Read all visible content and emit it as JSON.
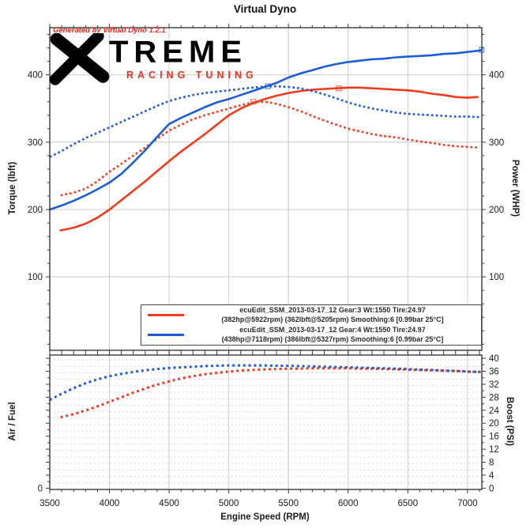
{
  "title": "Virtual Dyno",
  "watermark": "Generated by Virtual Dyno 1.2.1",
  "logo": {
    "x_glyph": "X",
    "word": "TREME",
    "subtitle": "RACING TUNING"
  },
  "colors": {
    "red_series": "#f23b1c",
    "blue_series": "#1b5cd8",
    "grid": "#c9c9c9",
    "axis": "#3a3a3a",
    "tick_label": "#1c1c1c",
    "watermark_red": "#f2261a",
    "logo_black": "#000000",
    "logo_red": "#e8321e"
  },
  "legend": {
    "entries": [
      {
        "color": "#f23b1c",
        "line1": "ecuEdit_SSM_2013-03-17_12 Gear:3 Wt:1550 Tire:24.97",
        "line2": "(382hp@5922rpm) (362lbft@5205rpm) Smoothing:6 [0.99bar 25°C]"
      },
      {
        "color": "#1b5cd8",
        "line1": "ecuEdit_SSM_2013-03-17_12 Gear:4 Wt:1550 Tire:24.97",
        "line2": "(438hp@7118rpm) (386lbft@5327rpm) Smoothing:6 [0.99bar 25°C]"
      }
    ]
  },
  "x_axis": {
    "label": "Engine Speed (RPM)",
    "ticks": [
      3500,
      4000,
      4500,
      5000,
      5500,
      6000,
      6500,
      7000
    ],
    "tick_labels": [
      "3500",
      "4000",
      "4500",
      "5000",
      "5500",
      "6000",
      "6500",
      "7000"
    ],
    "minor_step": 100,
    "xlim": [
      3500,
      7120
    ]
  },
  "chart_data": [
    {
      "type": "line",
      "title": "Virtual Dyno",
      "ylabel_left": "Torque (lbft)",
      "ylabel_right": "Power (WHP)",
      "xlim": [
        3500,
        7120
      ],
      "ylim": [
        -9,
        470
      ],
      "yticks": [
        100,
        200,
        300,
        400
      ],
      "ytick_labels": [
        "100",
        "200",
        "300",
        "400"
      ],
      "y_minor_step": 20,
      "grid": "solid-major",
      "legend_position": "bottom-inside",
      "series": [
        {
          "name": "gear3-power-whp",
          "color": "#f23b1c",
          "style": "solid",
          "points": [
            [
              3590,
              169
            ],
            [
              3700,
              173
            ],
            [
              3800,
              179
            ],
            [
              3900,
              188
            ],
            [
              4000,
              200
            ],
            [
              4100,
              214
            ],
            [
              4200,
              228
            ],
            [
              4300,
              242
            ],
            [
              4400,
              257
            ],
            [
              4500,
              272
            ],
            [
              4600,
              286
            ],
            [
              4700,
              299
            ],
            [
              4800,
              312
            ],
            [
              4900,
              326
            ],
            [
              5000,
              340
            ],
            [
              5100,
              350
            ],
            [
              5200,
              358
            ],
            [
              5300,
              364
            ],
            [
              5400,
              369
            ],
            [
              5500,
              373
            ],
            [
              5600,
              376
            ],
            [
              5700,
              378
            ],
            [
              5800,
              379
            ],
            [
              5900,
              380
            ],
            [
              6000,
              381
            ],
            [
              6100,
              381
            ],
            [
              6200,
              380
            ],
            [
              6300,
              379
            ],
            [
              6400,
              378
            ],
            [
              6500,
              377
            ],
            [
              6600,
              375
            ],
            [
              6700,
              372
            ],
            [
              6800,
              370
            ],
            [
              6900,
              367
            ],
            [
              7000,
              366
            ],
            [
              7085,
              367
            ]
          ]
        },
        {
          "name": "gear3-torque-lbft",
          "color": "#f23b1c",
          "style": "dotted",
          "points": [
            [
              3590,
              221
            ],
            [
              3700,
              225
            ],
            [
              3800,
              231
            ],
            [
              3900,
              242
            ],
            [
              4000,
              256
            ],
            [
              4100,
              268
            ],
            [
              4200,
              280
            ],
            [
              4300,
              292
            ],
            [
              4400,
              305
            ],
            [
              4500,
              317
            ],
            [
              4600,
              326
            ],
            [
              4700,
              334
            ],
            [
              4800,
              340
            ],
            [
              4900,
              345
            ],
            [
              5000,
              350
            ],
            [
              5100,
              355
            ],
            [
              5205,
              359
            ],
            [
              5300,
              360
            ],
            [
              5400,
              357
            ],
            [
              5500,
              352
            ],
            [
              5600,
              346
            ],
            [
              5700,
              339
            ],
            [
              5800,
              332
            ],
            [
              5900,
              326
            ],
            [
              6000,
              320
            ],
            [
              6100,
              316
            ],
            [
              6200,
              312
            ],
            [
              6300,
              309
            ],
            [
              6400,
              307
            ],
            [
              6500,
              304
            ],
            [
              6600,
              301
            ],
            [
              6700,
              299
            ],
            [
              6800,
              296
            ],
            [
              6900,
              294
            ],
            [
              7000,
              293
            ],
            [
              7085,
              292
            ]
          ]
        },
        {
          "name": "gear4-power-whp",
          "color": "#1b5cd8",
          "style": "solid",
          "points": [
            [
              3500,
              200
            ],
            [
              3600,
              206
            ],
            [
              3700,
              213
            ],
            [
              3800,
              221
            ],
            [
              3900,
              230
            ],
            [
              4000,
              240
            ],
            [
              4100,
              253
            ],
            [
              4200,
              270
            ],
            [
              4300,
              288
            ],
            [
              4400,
              308
            ],
            [
              4500,
              327
            ],
            [
              4600,
              336
            ],
            [
              4700,
              344
            ],
            [
              4800,
              352
            ],
            [
              4900,
              359
            ],
            [
              5000,
              364
            ],
            [
              5100,
              370
            ],
            [
              5200,
              376
            ],
            [
              5300,
              382
            ],
            [
              5400,
              388
            ],
            [
              5500,
              396
            ],
            [
              5600,
              402
            ],
            [
              5700,
              407
            ],
            [
              5800,
              412
            ],
            [
              5900,
              416
            ],
            [
              6000,
              419
            ],
            [
              6100,
              421
            ],
            [
              6200,
              423
            ],
            [
              6300,
              424
            ],
            [
              6400,
              426
            ],
            [
              6500,
              427
            ],
            [
              6600,
              428
            ],
            [
              6700,
              429
            ],
            [
              6800,
              431
            ],
            [
              6900,
              432
            ],
            [
              7000,
              434
            ],
            [
              7100,
              436
            ],
            [
              7118,
              437
            ]
          ]
        },
        {
          "name": "gear4-torque-lbft",
          "color": "#1b5cd8",
          "style": "dotted",
          "points": [
            [
              3500,
              278
            ],
            [
              3600,
              287
            ],
            [
              3700,
              297
            ],
            [
              3800,
              306
            ],
            [
              3900,
              314
            ],
            [
              4000,
              322
            ],
            [
              4100,
              330
            ],
            [
              4200,
              338
            ],
            [
              4300,
              346
            ],
            [
              4400,
              354
            ],
            [
              4500,
              361
            ],
            [
              4600,
              366
            ],
            [
              4700,
              370
            ],
            [
              4800,
              373
            ],
            [
              4900,
              375
            ],
            [
              5000,
              377
            ],
            [
              5100,
              379
            ],
            [
              5200,
              381
            ],
            [
              5327,
              383
            ],
            [
              5400,
              383
            ],
            [
              5500,
              382
            ],
            [
              5600,
              380
            ],
            [
              5700,
              376
            ],
            [
              5800,
              371
            ],
            [
              5900,
              365
            ],
            [
              6000,
              359
            ],
            [
              6100,
              354
            ],
            [
              6200,
              350
            ],
            [
              6300,
              347
            ],
            [
              6400,
              344
            ],
            [
              6500,
              342
            ],
            [
              6600,
              341
            ],
            [
              6700,
              340
            ],
            [
              6800,
              339
            ],
            [
              6900,
              338
            ],
            [
              7000,
              338
            ],
            [
              7120,
              337
            ]
          ]
        }
      ],
      "peak_markers": [
        {
          "series": "gear3-torque-lbft",
          "rpm": 5205,
          "value": 360,
          "label": "362lbft@5205rpm"
        },
        {
          "series": "gear3-power-whp",
          "rpm": 5922,
          "value": 380,
          "label": "382hp@5922rpm"
        },
        {
          "series": "gear4-torque-lbft",
          "rpm": 5327,
          "value": 383,
          "label": "386lbft@5327rpm"
        },
        {
          "series": "gear4-power-whp",
          "rpm": 7118,
          "value": 437,
          "label": "438hp@7118rpm"
        }
      ]
    },
    {
      "type": "line",
      "ylabel_left": "Air / Fuel",
      "ylabel_right": "Boost (PSI)",
      "xlabel": "Engine Speed (RPM)",
      "xlim": [
        3500,
        7120
      ],
      "ylim": [
        -0.4,
        41
      ],
      "yticks_right": [
        0,
        4,
        8,
        12,
        16,
        20,
        24,
        28,
        32,
        36,
        40
      ],
      "ytick_labels_right": [
        "0",
        "4",
        "8",
        "12",
        "16",
        "20",
        "24",
        "28",
        "32",
        "36",
        "40"
      ],
      "y_minor_step": 2,
      "ytick_labels_left": [
        "0"
      ],
      "yticks_left": [
        0
      ],
      "grid": "dotted-minor",
      "series": [
        {
          "name": "gear3-boost-psi",
          "color": "#f23b1c",
          "style": "dotted",
          "points": [
            [
              3590,
              21.8
            ],
            [
              3700,
              22.8
            ],
            [
              3800,
              23.9
            ],
            [
              3900,
              25.2
            ],
            [
              4000,
              26.6
            ],
            [
              4100,
              28.0
            ],
            [
              4200,
              29.4
            ],
            [
              4300,
              30.7
            ],
            [
              4400,
              31.9
            ],
            [
              4500,
              32.9
            ],
            [
              4600,
              33.8
            ],
            [
              4700,
              34.5
            ],
            [
              4800,
              35.1
            ],
            [
              4900,
              35.5
            ],
            [
              5000,
              35.9
            ],
            [
              5100,
              36.2
            ],
            [
              5200,
              36.4
            ],
            [
              5300,
              36.6
            ],
            [
              5400,
              36.7
            ],
            [
              5500,
              36.8
            ],
            [
              5600,
              36.8
            ],
            [
              5700,
              36.9
            ],
            [
              5800,
              36.9
            ],
            [
              5900,
              36.9
            ],
            [
              6000,
              36.9
            ],
            [
              6100,
              36.8
            ],
            [
              6200,
              36.8
            ],
            [
              6300,
              36.7
            ],
            [
              6400,
              36.6
            ],
            [
              6500,
              36.5
            ],
            [
              6600,
              36.4
            ],
            [
              6700,
              36.3
            ],
            [
              6800,
              36.2
            ],
            [
              6900,
              36.1
            ],
            [
              7000,
              35.9
            ],
            [
              7110,
              35.8
            ]
          ]
        },
        {
          "name": "gear4-boost-psi",
          "color": "#1b5cd8",
          "style": "dotted",
          "points": [
            [
              3500,
              27.2
            ],
            [
              3600,
              29.1
            ],
            [
              3700,
              30.8
            ],
            [
              3800,
              32.3
            ],
            [
              3900,
              33.5
            ],
            [
              4000,
              34.5
            ],
            [
              4100,
              35.2
            ],
            [
              4200,
              35.8
            ],
            [
              4300,
              36.3
            ],
            [
              4400,
              36.7
            ],
            [
              4500,
              37.0
            ],
            [
              4600,
              37.2
            ],
            [
              4700,
              37.4
            ],
            [
              4800,
              37.6
            ],
            [
              4900,
              37.7
            ],
            [
              5000,
              37.8
            ],
            [
              5100,
              37.8
            ],
            [
              5200,
              37.8
            ],
            [
              5300,
              37.8
            ],
            [
              5400,
              37.7
            ],
            [
              5500,
              37.7
            ],
            [
              5600,
              37.6
            ],
            [
              5700,
              37.5
            ],
            [
              5800,
              37.4
            ],
            [
              5900,
              37.3
            ],
            [
              6000,
              37.2
            ],
            [
              6100,
              37.1
            ],
            [
              6200,
              37.0
            ],
            [
              6300,
              36.9
            ],
            [
              6400,
              36.8
            ],
            [
              6500,
              36.7
            ],
            [
              6600,
              36.5
            ],
            [
              6700,
              36.4
            ],
            [
              6800,
              36.2
            ],
            [
              6900,
              36.1
            ],
            [
              7000,
              35.9
            ],
            [
              7110,
              35.8
            ]
          ]
        }
      ]
    }
  ]
}
